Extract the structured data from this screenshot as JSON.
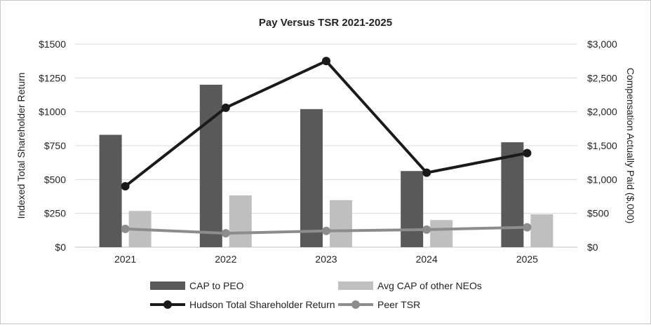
{
  "chart_data": {
    "type": "bar-line-combo",
    "title": "Pay Versus TSR 2021-2025",
    "categories": [
      "2021",
      "2022",
      "2023",
      "2024",
      "2025"
    ],
    "y_left": {
      "label": "Indexed Total Shareholder Return",
      "range": [
        0,
        1500
      ],
      "ticks": [
        "$0",
        "$250",
        "$500",
        "$750",
        "$1000",
        "$1250",
        "$1500"
      ]
    },
    "y_right": {
      "label": "Compensation Actually Paid ($,000)",
      "range": [
        0,
        3000
      ],
      "ticks": [
        "$0",
        "$500",
        "$1,000",
        "$1,500",
        "$2,000",
        "$2,500",
        "$3,000"
      ]
    },
    "bar_series": [
      {
        "name": "CAP to PEO",
        "axis": "right",
        "color": "#595959",
        "values": [
          1660,
          2400,
          2040,
          1125,
          1550
        ]
      },
      {
        "name": "Avg CAP of other NEOs",
        "axis": "right",
        "color": "#bfbfbf",
        "values": [
          535,
          765,
          695,
          400,
          485
        ]
      }
    ],
    "line_series": [
      {
        "name": "Hudson Total Shareholder Return",
        "axis": "left",
        "color": "#1a1a1a",
        "values": [
          450,
          1030,
          1375,
          550,
          695
        ]
      },
      {
        "name": "Peer TSR",
        "axis": "left",
        "color": "#8c8c8c",
        "values": [
          135,
          103,
          120,
          130,
          147
        ]
      }
    ],
    "grid": true,
    "legend_position": "bottom"
  }
}
